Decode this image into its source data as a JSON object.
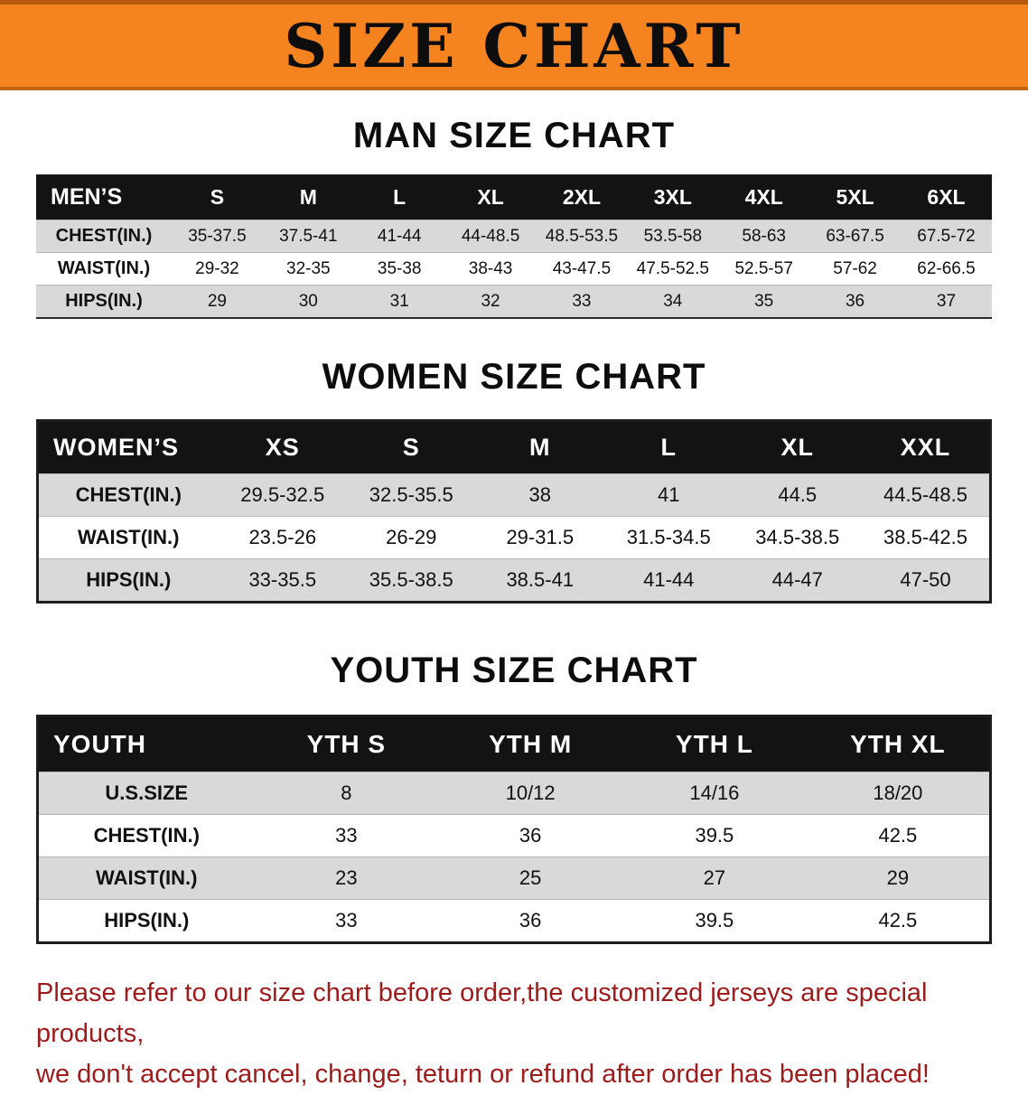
{
  "banner": {
    "title": "SIZE CHART"
  },
  "colors": {
    "banner_bg": "#f5831f",
    "table_header_bg": "#131313",
    "row_stripe": "#d9d9d9",
    "footer_text": "#9e1b1b"
  },
  "chart_data": [
    {
      "type": "table",
      "title": "MAN SIZE CHART",
      "corner_label": "MEN’S",
      "columns": [
        "S",
        "M",
        "L",
        "XL",
        "2XL",
        "3XL",
        "4XL",
        "5XL",
        "6XL"
      ],
      "rows": [
        {
          "label": "CHEST(IN.)",
          "values": [
            "35-37.5",
            "37.5-41",
            "41-44",
            "44-48.5",
            "48.5-53.5",
            "53.5-58",
            "58-63",
            "63-67.5",
            "67.5-72"
          ]
        },
        {
          "label": "WAIST(IN.)",
          "values": [
            "29-32",
            "32-35",
            "35-38",
            "38-43",
            "43-47.5",
            "47.5-52.5",
            "52.5-57",
            "57-62",
            "62-66.5"
          ]
        },
        {
          "label": "HIPS(IN.)",
          "values": [
            "29",
            "30",
            "31",
            "32",
            "33",
            "34",
            "35",
            "36",
            "37"
          ]
        }
      ]
    },
    {
      "type": "table",
      "title": "WOMEN SIZE CHART",
      "corner_label": "WOMEN’S",
      "columns": [
        "XS",
        "S",
        "M",
        "L",
        "XL",
        "XXL"
      ],
      "rows": [
        {
          "label": "CHEST(IN.)",
          "values": [
            "29.5-32.5",
            "32.5-35.5",
            "38",
            "41",
            "44.5",
            "44.5-48.5"
          ]
        },
        {
          "label": "WAIST(IN.)",
          "values": [
            "23.5-26",
            "26-29",
            "29-31.5",
            "31.5-34.5",
            "34.5-38.5",
            "38.5-42.5"
          ]
        },
        {
          "label": "HIPS(IN.)",
          "values": [
            "33-35.5",
            "35.5-38.5",
            "38.5-41",
            "41-44",
            "44-47",
            "47-50"
          ]
        }
      ]
    },
    {
      "type": "table",
      "title": "YOUTH SIZE CHART",
      "corner_label": "YOUTH",
      "columns": [
        "YTH S",
        "YTH M",
        "YTH L",
        "YTH XL"
      ],
      "rows": [
        {
          "label": "U.S.SIZE",
          "values": [
            "8",
            "10/12",
            "14/16",
            "18/20"
          ]
        },
        {
          "label": "CHEST(IN.)",
          "values": [
            "33",
            "36",
            "39.5",
            "42.5"
          ]
        },
        {
          "label": "WAIST(IN.)",
          "values": [
            "23",
            "25",
            "27",
            "29"
          ]
        },
        {
          "label": "HIPS(IN.)",
          "values": [
            "33",
            "36",
            "39.5",
            "42.5"
          ]
        }
      ]
    }
  ],
  "footer": {
    "line1": "Please refer to our size chart before order,the customized jerseys are special products,",
    "line2": "we don't accept cancel, change, teturn or refund after order has been placed!"
  }
}
